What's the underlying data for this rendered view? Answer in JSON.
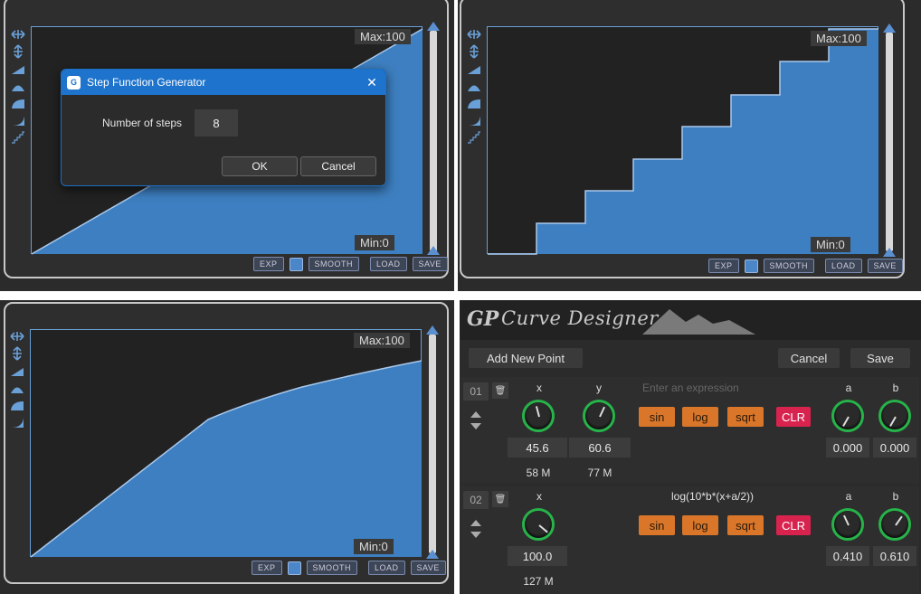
{
  "panel1": {
    "max_label": "Max:100",
    "min_label": "Min:0",
    "buttons": {
      "exp": "EXP",
      "smooth": "SMOOTH",
      "load": "LOAD",
      "save": "SAVE"
    },
    "dialog": {
      "title": "Step Function Generator",
      "field_label": "Number of steps",
      "field_value": "8",
      "ok": "OK",
      "cancel": "Cancel"
    }
  },
  "panel2": {
    "max_label": "Max:100",
    "min_label": "Min:0",
    "buttons": {
      "exp": "EXP",
      "smooth": "SMOOTH",
      "load": "LOAD",
      "save": "SAVE"
    }
  },
  "panel3": {
    "max_label": "Max:100",
    "min_label": "Min:0",
    "buttons": {
      "exp": "EXP",
      "smooth": "SMOOTH",
      "load": "LOAD",
      "save": "SAVE"
    }
  },
  "curve_designer": {
    "title": "Curve Designer",
    "add_point": "Add New Point",
    "cancel": "Cancel",
    "save": "Save",
    "func_buttons": {
      "sin": "sin",
      "log": "log",
      "sqrt": "sqrt",
      "clr": "CLR"
    },
    "rows": [
      {
        "index": "01",
        "col_x": "x",
        "col_y": "y",
        "col_a": "a",
        "col_b": "b",
        "expression_placeholder": "Enter an expression",
        "x_value": "45.6",
        "y_value": "60.6",
        "x_midi": "58 M",
        "y_midi": "77 M",
        "a_value": "0.000",
        "b_value": "0.000"
      },
      {
        "index": "02",
        "col_x": "x",
        "col_a": "a",
        "col_b": "b",
        "expression": "log(10*b*(x+a/2))",
        "x_value": "100.0",
        "x_midi": "127 M",
        "a_value": "0.410",
        "b_value": "0.610"
      }
    ]
  },
  "colors": {
    "accent": "#4a86c8",
    "knob_ring": "#27b34a",
    "func_orange": "#d9762a",
    "clr_red": "#d8234f"
  }
}
